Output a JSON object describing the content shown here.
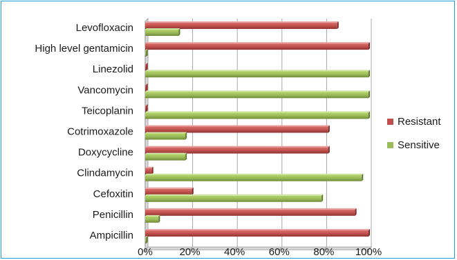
{
  "chart_data": {
    "type": "bar",
    "orientation": "horizontal",
    "categories": [
      "Levofloxacin",
      "High level gentamicin",
      "Linezolid",
      "Vancomycin",
      "Teicoplanin",
      "Cotrimoxazole",
      "Doxycycline",
      "Clindamycin",
      "Cefoxitin",
      "Penicillin",
      "Ampicillin"
    ],
    "series": [
      {
        "name": "Resistant",
        "color": "#c0504d",
        "values": [
          86,
          100,
          0,
          0,
          0,
          82,
          82,
          3,
          21,
          94,
          100
        ]
      },
      {
        "name": "Sensitive",
        "color": "#9bbb59",
        "values": [
          15,
          0,
          100,
          100,
          100,
          18,
          18,
          97,
          79,
          6,
          0
        ]
      }
    ],
    "x_ticks": [
      "0%",
      "20%",
      "40%",
      "60%",
      "80%",
      "100%"
    ],
    "xlim": [
      0,
      100
    ],
    "grid": true,
    "legend_position": "right",
    "style": "3d"
  }
}
